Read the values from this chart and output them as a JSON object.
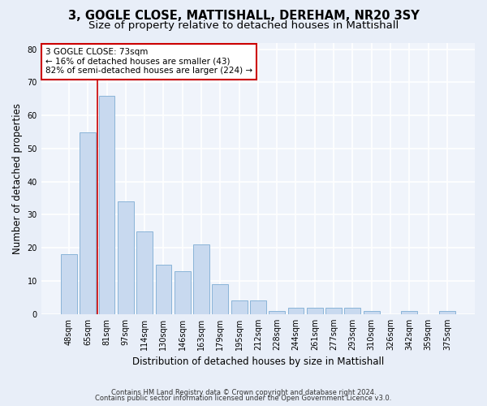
{
  "title1": "3, GOGLE CLOSE, MATTISHALL, DEREHAM, NR20 3SY",
  "title2": "Size of property relative to detached houses in Mattishall",
  "xlabel": "Distribution of detached houses by size in Mattishall",
  "ylabel": "Number of detached properties",
  "categories": [
    "48sqm",
    "65sqm",
    "81sqm",
    "97sqm",
    "114sqm",
    "130sqm",
    "146sqm",
    "163sqm",
    "179sqm",
    "195sqm",
    "212sqm",
    "228sqm",
    "244sqm",
    "261sqm",
    "277sqm",
    "293sqm",
    "310sqm",
    "326sqm",
    "342sqm",
    "359sqm",
    "375sqm"
  ],
  "values": [
    18,
    55,
    66,
    34,
    25,
    15,
    13,
    21,
    9,
    4,
    4,
    1,
    2,
    2,
    2,
    2,
    1,
    0,
    1,
    0,
    1
  ],
  "bar_color": "#c8d9ef",
  "bar_edge_color": "#8ab4d8",
  "vline_x": 1.5,
  "vline_color": "#cc0000",
  "annotation_text": "3 GOGLE CLOSE: 73sqm\n← 16% of detached houses are smaller (43)\n82% of semi-detached houses are larger (224) →",
  "annotation_box_color": "#ffffff",
  "annotation_box_edge_color": "#cc0000",
  "ylim": [
    0,
    82
  ],
  "yticks": [
    0,
    10,
    20,
    30,
    40,
    50,
    60,
    70,
    80
  ],
  "footer1": "Contains HM Land Registry data © Crown copyright and database right 2024.",
  "footer2": "Contains public sector information licensed under the Open Government Licence v3.0.",
  "bg_color": "#e8eef8",
  "plot_bg_color": "#f0f4fb",
  "grid_color": "#ffffff",
  "title_fontsize": 10.5,
  "subtitle_fontsize": 9.5,
  "tick_fontsize": 7,
  "ylabel_fontsize": 8.5,
  "xlabel_fontsize": 8.5,
  "annotation_fontsize": 7.5,
  "footer_fontsize": 6
}
